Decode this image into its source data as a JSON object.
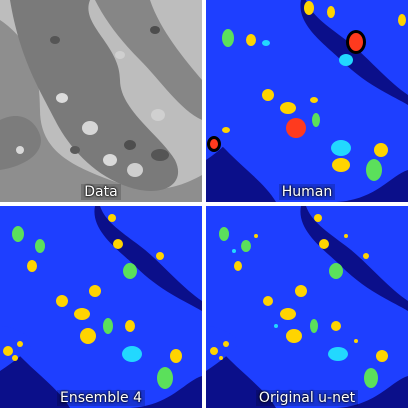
{
  "panels": {
    "data": {
      "caption": "Data"
    },
    "human": {
      "caption": "Human"
    },
    "ensemble": {
      "caption": "Ensemble 4"
    },
    "unet": {
      "caption": "Original u-net"
    }
  },
  "colors": {
    "background_segment": "#0b0f8a",
    "cell_segment": "#1e3fff",
    "class_yellow": "#ffd400",
    "class_green": "#5be05b",
    "class_cyan": "#22d8ff",
    "class_red": "#ff3a1e",
    "em_light": "#c8c8c8",
    "em_dark": "#6f6f6f"
  }
}
